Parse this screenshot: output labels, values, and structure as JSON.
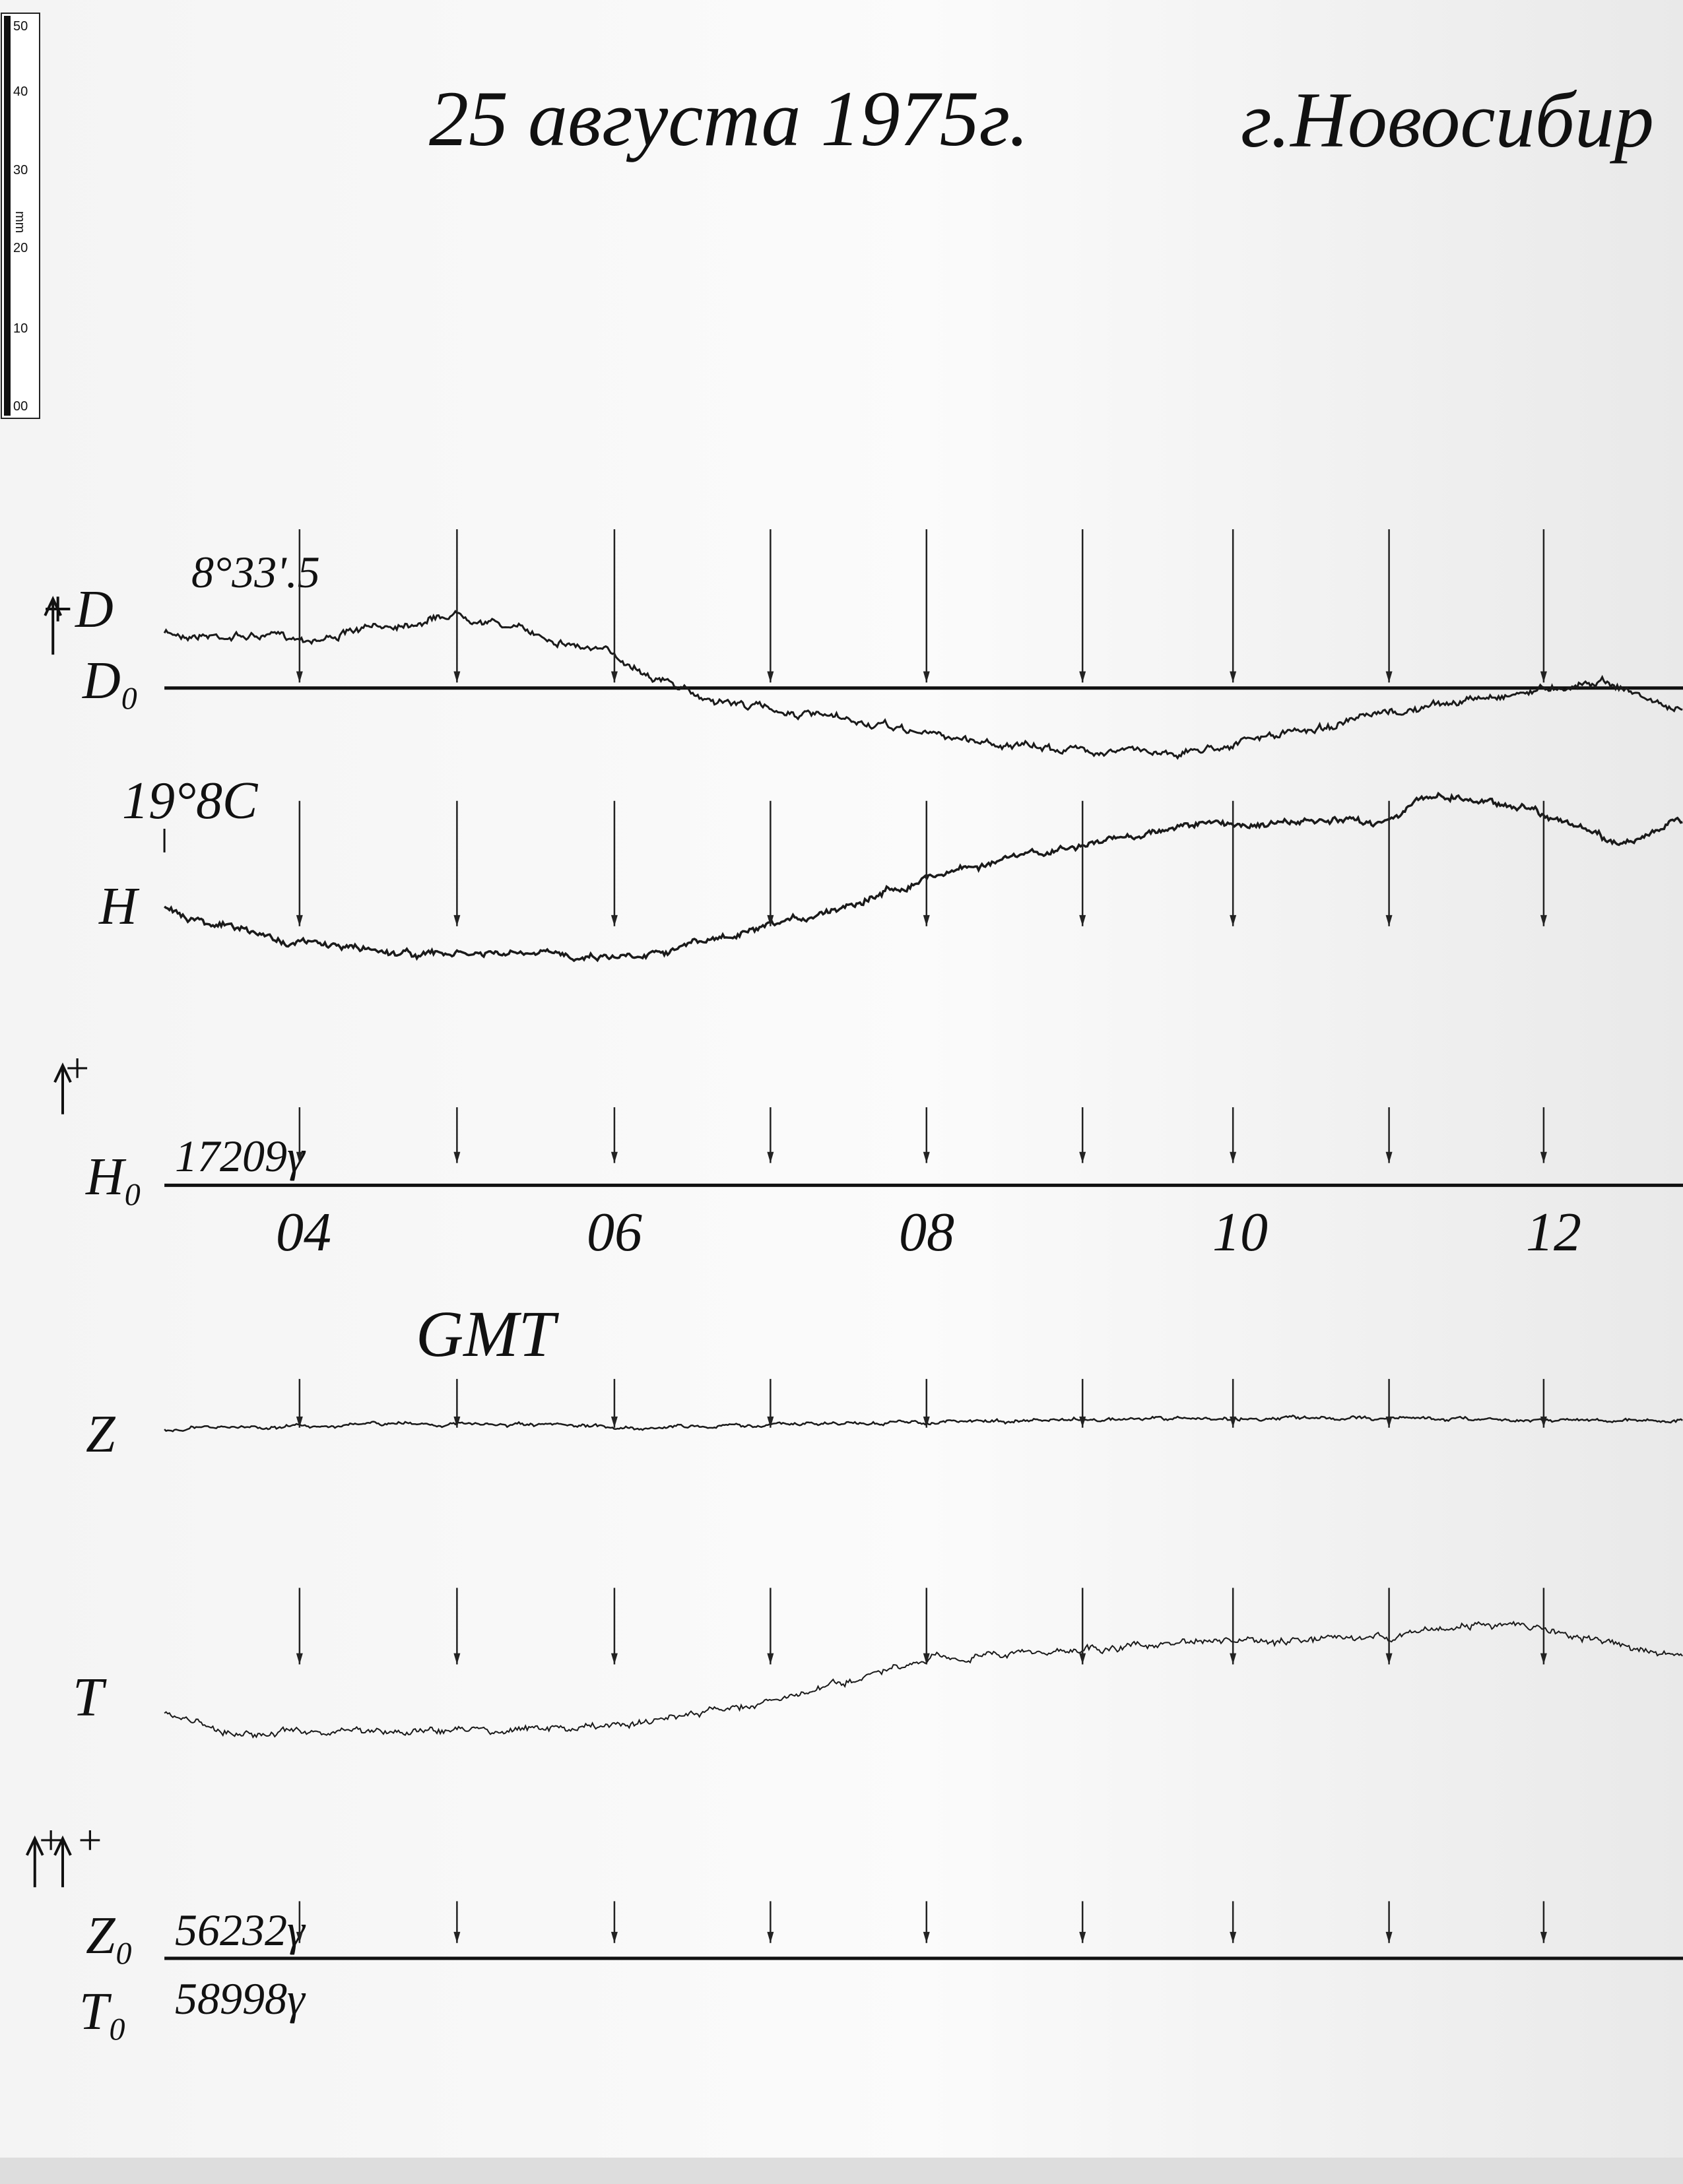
{
  "ruler": {
    "labels": [
      "50",
      "40",
      "30",
      "20",
      "10",
      "00"
    ],
    "unit": "mm"
  },
  "header": {
    "date": "25 августа 1975г.",
    "place": "г.Новосибир"
  },
  "d_channel": {
    "label": "+D",
    "base_label": "D₀",
    "base_value": "8°33'.5"
  },
  "h_channel": {
    "temperature": "19°8C",
    "label": "H",
    "sign": "+",
    "base_label": "H₀",
    "base_value": "17209γ"
  },
  "time_axis": {
    "labels": [
      "04",
      "06",
      "08",
      "10",
      "12"
    ],
    "zone": "GMT"
  },
  "z_channel": {
    "label": "Z"
  },
  "t_channel": {
    "label": "T"
  },
  "zt_base": {
    "signs": "+ +",
    "z_label": "Z₀",
    "z_value": "56232γ",
    "t_label": "T₀",
    "t_value": "58998γ"
  }
}
